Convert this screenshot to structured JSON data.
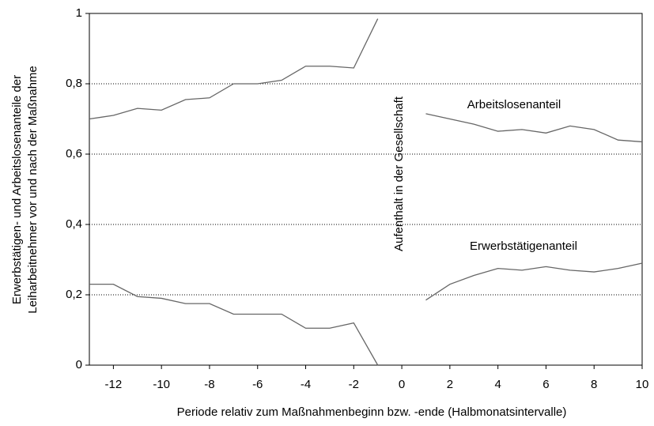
{
  "chart_data": {
    "type": "line",
    "x_label": "Periode relativ zum Maßnahmenbeginn bzw. -ende (Halbmonatsintervalle)",
    "y_label": [
      "Erwerbstätigen- und Arbeitslosenanteile der",
      "Leiharbeitnehmer vor und nach der Maßnahme"
    ],
    "annotation": "Aufenthalt in der Gesellschaft",
    "x": [
      -13,
      -12,
      -11,
      -10,
      -9,
      -8,
      -7,
      -6,
      -5,
      -4,
      -3,
      -2,
      -1,
      0,
      1,
      2,
      3,
      4,
      5,
      6,
      7,
      8,
      9,
      10
    ],
    "series": [
      {
        "name": "Arbeitslosenanteil",
        "color": "#666666",
        "values": [
          0.7,
          0.71,
          0.73,
          0.725,
          0.755,
          0.76,
          0.8,
          0.8,
          0.81,
          0.85,
          0.85,
          0.845,
          0.985,
          null,
          0.715,
          0.7,
          0.685,
          0.665,
          0.67,
          0.66,
          0.68,
          0.67,
          0.64,
          0.635
        ]
      },
      {
        "name": "Erwerbstätigenanteil",
        "color": "#666666",
        "values": [
          0.23,
          0.23,
          0.195,
          0.19,
          0.175,
          0.175,
          0.145,
          0.145,
          0.145,
          0.105,
          0.105,
          0.12,
          0.0,
          null,
          0.185,
          0.23,
          0.255,
          0.275,
          0.27,
          0.28,
          0.27,
          0.265,
          0.275,
          0.29
        ]
      }
    ],
    "xlim": [
      -13,
      10
    ],
    "ylim": [
      0,
      1
    ],
    "xticks": [
      -12,
      -10,
      -8,
      -6,
      -4,
      -2,
      0,
      2,
      4,
      6,
      8,
      10
    ],
    "yticks": [
      0,
      {
        "value": 0.2,
        "label": "0,2"
      },
      {
        "value": 0.4,
        "label": "0,4"
      },
      {
        "value": 0.6,
        "label": "0,6"
      },
      {
        "value": 0.8,
        "label": "0,8"
      },
      1
    ],
    "grid": true
  }
}
